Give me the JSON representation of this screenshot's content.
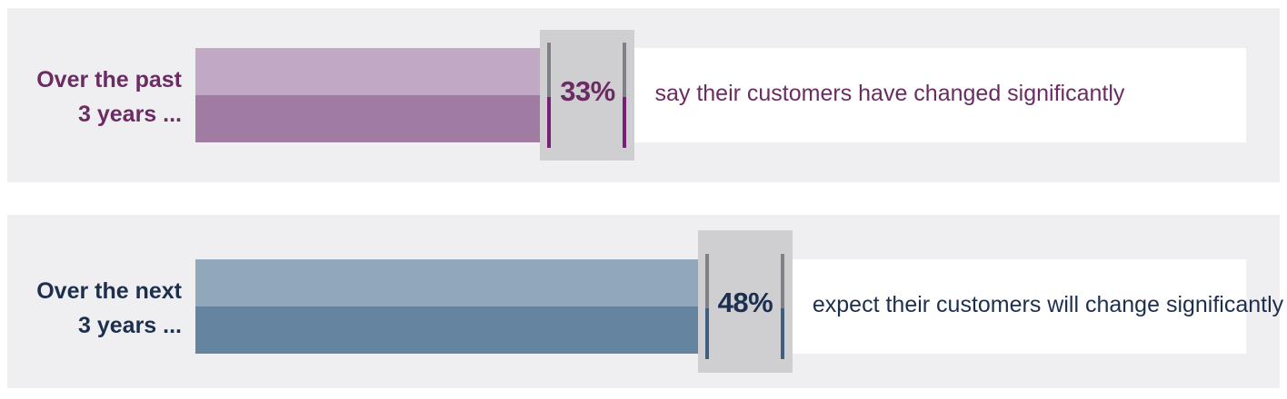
{
  "chart_data": {
    "type": "bar",
    "orientation": "horizontal",
    "xlim": [
      0,
      100
    ],
    "rows": [
      {
        "label_line1": "Over the past",
        "label_line2": "3 years ...",
        "value": 33,
        "value_text": "33%",
        "description": "say their customers have changed significantly",
        "colors": {
          "text": "#6b2c63",
          "fill_top": "#c1a9c6",
          "fill_bottom": "#a07ca3",
          "accent": "#7a1f78"
        }
      },
      {
        "label_line1": "Over the next",
        "label_line2": "3 years ...",
        "value": 48,
        "value_text": "48%",
        "description": "expect their customers will change significantly",
        "colors": {
          "text": "#1d2f4f",
          "fill_top": "#91a8ba",
          "fill_bottom": "#6484a0",
          "accent": "#3e5f80"
        }
      }
    ]
  }
}
